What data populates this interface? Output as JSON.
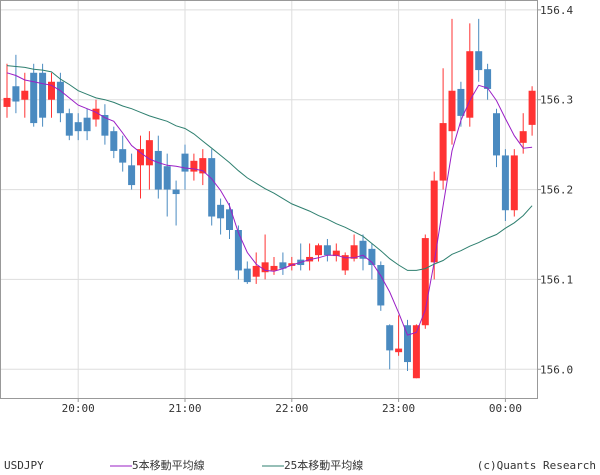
{
  "chart_data": {
    "type": "candlestick",
    "symbol": "USDJPY",
    "credit": "(c)Quants Research",
    "categories": [
      null,
      null,
      null,
      null,
      null,
      null,
      null,
      null,
      "20:00",
      null,
      null,
      null,
      null,
      null,
      null,
      null,
      null,
      null,
      null,
      null,
      "21:00",
      null,
      null,
      null,
      null,
      null,
      null,
      null,
      null,
      null,
      null,
      null,
      "22:00",
      null,
      null,
      null,
      null,
      null,
      null,
      null,
      null,
      null,
      null,
      null,
      "23:00",
      null,
      null,
      null,
      null,
      null,
      null,
      null,
      null,
      null,
      null,
      null,
      "00:00",
      null,
      null,
      null
    ],
    "open": [
      156.292,
      156.315,
      156.3,
      156.33,
      156.33,
      156.3,
      156.32,
      156.285,
      156.275,
      156.28,
      156.278,
      156.283,
      156.265,
      156.245,
      156.227,
      156.227,
      156.227,
      156.243,
      156.226,
      156.2,
      156.24,
      156.22,
      156.218,
      156.235,
      156.183,
      156.178,
      156.155,
      156.112,
      156.103,
      156.108,
      156.11,
      156.119,
      156.115,
      156.122,
      156.12,
      156.127,
      156.138,
      156.126,
      156.11,
      156.123,
      156.143,
      156.134,
      156.116,
      156.049,
      156.019,
      156.049,
      155.99,
      156.049,
      156.119,
      156.21,
      156.265,
      156.312,
      156.28,
      156.354,
      156.334,
      156.285,
      156.238,
      156.177,
      156.252,
      156.272
    ],
    "high": [
      156.34,
      156.35,
      156.33,
      156.34,
      156.34,
      156.33,
      156.33,
      156.29,
      156.285,
      156.29,
      156.3,
      156.295,
      156.27,
      156.26,
      156.24,
      156.26,
      156.265,
      156.26,
      156.24,
      156.21,
      156.25,
      156.24,
      156.245,
      156.245,
      156.19,
      156.185,
      156.16,
      156.12,
      156.13,
      156.15,
      156.125,
      156.13,
      156.125,
      156.14,
      156.14,
      156.14,
      156.145,
      156.14,
      156.13,
      156.15,
      156.15,
      156.14,
      156.12,
      156.05,
      156.06,
      156.055,
      156.05,
      156.15,
      156.22,
      156.335,
      156.39,
      156.32,
      156.385,
      156.39,
      156.34,
      156.29,
      156.245,
      156.245,
      156.285,
      156.315
    ],
    "low": [
      156.28,
      156.285,
      156.28,
      156.27,
      156.27,
      156.28,
      156.275,
      156.255,
      156.255,
      156.255,
      156.27,
      156.25,
      156.235,
      156.22,
      156.2,
      156.19,
      156.2,
      156.19,
      156.17,
      156.16,
      156.2,
      156.21,
      156.205,
      156.16,
      156.15,
      156.145,
      156.1,
      156.095,
      156.095,
      156.1,
      156.105,
      156.105,
      156.11,
      156.11,
      156.11,
      156.12,
      156.12,
      156.12,
      156.105,
      156.12,
      156.11,
      156.1,
      156.065,
      156.0,
      156.015,
      155.998,
      155.99,
      156.045,
      156.1,
      156.2,
      156.25,
      156.27,
      156.27,
      156.32,
      156.3,
      156.225,
      156.165,
      156.17,
      156.24,
      156.26
    ],
    "close": [
      156.302,
      156.298,
      156.31,
      156.274,
      156.28,
      156.32,
      156.285,
      156.26,
      156.265,
      156.265,
      156.29,
      156.26,
      156.243,
      156.23,
      156.205,
      156.245,
      156.255,
      156.2,
      156.2,
      156.195,
      156.22,
      156.232,
      156.235,
      156.17,
      156.168,
      156.155,
      156.11,
      156.097,
      156.115,
      156.119,
      156.115,
      156.112,
      156.118,
      156.116,
      156.125,
      156.138,
      156.127,
      156.132,
      156.127,
      156.138,
      156.123,
      156.116,
      156.071,
      156.021,
      156.023,
      156.008,
      156.049,
      156.146,
      156.21,
      156.274,
      156.31,
      156.282,
      156.354,
      156.333,
      156.312,
      156.238,
      156.177,
      156.238,
      156.265,
      156.31
    ],
    "up_color": "#ff3333",
    "down_color": "#4a8ac0",
    "series": [
      {
        "name": "5本移動平均線",
        "color": "#9a1fc6",
        "values": [
          156.33,
          156.327,
          156.322,
          156.32,
          156.318,
          156.316,
          156.31,
          156.302,
          156.294,
          156.29,
          156.286,
          156.28,
          156.276,
          156.263,
          156.249,
          156.241,
          156.234,
          156.23,
          156.227,
          156.226,
          156.224,
          156.223,
          156.221,
          156.212,
          156.199,
          156.182,
          156.152,
          156.13,
          156.117,
          156.11,
          156.109,
          156.112,
          156.116,
          156.119,
          156.122,
          156.124,
          156.127,
          156.127,
          156.124,
          156.124,
          156.127,
          156.119,
          156.104,
          156.086,
          156.063,
          156.038,
          156.041,
          156.066,
          156.119,
          156.182,
          156.243,
          156.277,
          156.299,
          156.316,
          156.313,
          156.299,
          156.279,
          156.26,
          156.246,
          156.247
        ]
      },
      {
        "name": "25本移動平均線",
        "color": "#2e7f6f",
        "values": [
          156.338,
          156.337,
          156.336,
          156.334,
          156.333,
          156.331,
          156.323,
          156.317,
          156.31,
          156.306,
          156.302,
          156.3,
          156.297,
          156.293,
          156.29,
          156.286,
          156.282,
          156.279,
          156.276,
          156.271,
          156.268,
          156.262,
          156.254,
          156.246,
          156.238,
          156.23,
          156.221,
          156.213,
          156.207,
          156.201,
          156.196,
          156.19,
          156.184,
          156.18,
          156.176,
          156.171,
          156.167,
          156.162,
          156.158,
          156.153,
          156.148,
          156.14,
          156.132,
          156.123,
          156.116,
          156.11,
          156.11,
          156.112,
          156.117,
          156.121,
          156.128,
          156.132,
          156.137,
          156.141,
          156.146,
          156.15,
          156.157,
          156.163,
          156.171,
          156.182
        ]
      }
    ],
    "ylim": [
      155.968,
      156.411
    ],
    "yticks": [
      {
        "value": 156,
        "label": "156.0"
      },
      156.1,
      156.2,
      156.3,
      156.4
    ],
    "grid": true
  }
}
